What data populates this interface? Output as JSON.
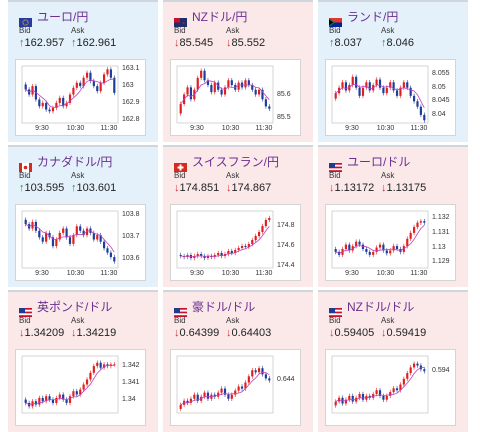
{
  "colors": {
    "up_bg": "#e4f1fb",
    "down_bg": "#fbe9ea",
    "pair_text": "#6a2f8f",
    "up_arrow": "#1a9a4a",
    "down_arrow": "#d93030",
    "candle_up": "#e02020",
    "candle_down": "#1e3c9b",
    "ma_line": "#c040c0"
  },
  "cards": [
    {
      "pair": "ユーロ/円",
      "flag": "eu-flag-icon",
      "bid_label": "Bid",
      "ask_label": "Ask",
      "direction": "up",
      "arrow_bid": "↑",
      "arrow_ask": "↑",
      "bid": "162.957",
      "ask": "162.961",
      "y_ticks": [
        "163.1",
        "163",
        "162.9",
        "162.8"
      ],
      "x_ticks": [
        "9:30",
        "10:30",
        "11:30"
      ],
      "chart_data": {
        "type": "candlestick",
        "ylim": [
          162.78,
          163.12
        ],
        "y_tick_values": [
          163.1,
          163.0,
          162.9,
          162.8
        ],
        "close": [
          162.98,
          162.95,
          163.0,
          162.92,
          162.88,
          162.9,
          162.86,
          162.85,
          162.87,
          162.9,
          162.93,
          162.88,
          162.9,
          162.95,
          162.99,
          163.02,
          163.0,
          163.05,
          163.08,
          163.03,
          163.0,
          162.97,
          163.02,
          163.07,
          163.1,
          163.05,
          162.96
        ]
      }
    },
    {
      "pair": "NZドル/円",
      "flag": "nz-flag-icon",
      "bid_label": "Bid",
      "ask_label": "Ask",
      "direction": "down",
      "arrow_bid": "↓",
      "arrow_ask": "↓",
      "bid": "85.545",
      "ask": "85.552",
      "y_ticks": [
        "85.6",
        "85.5"
      ],
      "x_ticks": [
        "9:30",
        "10:30",
        "11:30"
      ],
      "chart_data": {
        "type": "candlestick",
        "ylim": [
          85.48,
          85.72
        ],
        "y_tick_values": [
          85.6,
          85.5
        ],
        "close": [
          85.56,
          85.6,
          85.63,
          85.58,
          85.62,
          85.67,
          85.7,
          85.66,
          85.64,
          85.61,
          85.65,
          85.62,
          85.6,
          85.63,
          85.66,
          85.64,
          85.62,
          85.65,
          85.63,
          85.66,
          85.64,
          85.62,
          85.6,
          85.62,
          85.58,
          85.55,
          85.54
        ]
      }
    },
    {
      "pair": "ランド/円",
      "flag": "za-flag-icon",
      "bid_label": "Bid",
      "ask_label": "Ask",
      "direction": "up",
      "arrow_bid": "↑",
      "arrow_ask": "↑",
      "bid": "8.037",
      "ask": "8.046",
      "y_ticks": [
        "8.055",
        "8.05",
        "8.045",
        "8.04"
      ],
      "x_ticks": [
        "9:30",
        "10:30",
        "11:30"
      ],
      "chart_data": {
        "type": "candlestick",
        "ylim": [
          8.037,
          8.058
        ],
        "y_tick_values": [
          8.055,
          8.05,
          8.045,
          8.04
        ],
        "close": [
          8.048,
          8.05,
          8.052,
          8.049,
          8.051,
          8.054,
          8.05,
          8.047,
          8.05,
          8.052,
          8.049,
          8.051,
          8.053,
          8.05,
          8.048,
          8.05,
          8.052,
          8.049,
          8.047,
          8.05,
          8.052,
          8.05,
          8.047,
          8.045,
          8.043,
          8.04,
          8.038
        ]
      }
    },
    {
      "pair": "カナダドル/円",
      "flag": "ca-flag-icon",
      "bid_label": "Bid",
      "ask_label": "Ask",
      "direction": "up",
      "arrow_bid": "↑",
      "arrow_ask": "↑",
      "bid": "103.595",
      "ask": "103.601",
      "y_ticks": [
        "103.8",
        "103.7",
        "103.6"
      ],
      "x_ticks": [
        "9:30",
        "10:30",
        "11:30"
      ],
      "chart_data": {
        "type": "candlestick",
        "ylim": [
          103.56,
          103.82
        ],
        "y_tick_values": [
          103.8,
          103.7,
          103.6
        ],
        "close": [
          103.76,
          103.74,
          103.77,
          103.73,
          103.7,
          103.68,
          103.72,
          103.7,
          103.66,
          103.69,
          103.72,
          103.74,
          103.7,
          103.67,
          103.71,
          103.75,
          103.73,
          103.71,
          103.74,
          103.72,
          103.69,
          103.71,
          103.68,
          103.65,
          103.63,
          103.61,
          103.59
        ]
      }
    },
    {
      "pair": "スイスフラン/円",
      "flag": "ch-flag-icon",
      "bid_label": "Bid",
      "ask_label": "Ask",
      "direction": "down",
      "arrow_bid": "↓",
      "arrow_ask": "↓",
      "bid": "174.851",
      "ask": "174.867",
      "y_ticks": [
        "174.8",
        "174.6",
        "174.4"
      ],
      "x_ticks": [
        "9:30",
        "10:30",
        "11:30"
      ],
      "chart_data": {
        "type": "candlestick",
        "ylim": [
          174.38,
          174.95
        ],
        "y_tick_values": [
          174.8,
          174.6,
          174.4
        ],
        "close": [
          174.5,
          174.49,
          174.51,
          174.48,
          174.5,
          174.52,
          174.5,
          174.48,
          174.5,
          174.49,
          174.51,
          174.53,
          174.5,
          174.52,
          174.55,
          174.53,
          174.56,
          174.58,
          174.6,
          174.59,
          174.62,
          174.66,
          174.7,
          174.74,
          174.8,
          174.86,
          174.88
        ]
      }
    },
    {
      "pair": "ユーロ/ドル",
      "flag": "us-flag-icon",
      "bid_label": "Bid",
      "ask_label": "Ask",
      "direction": "down",
      "arrow_bid": "↓",
      "arrow_ask": "↓",
      "bid": "1.13172",
      "ask": "1.13175",
      "y_ticks": [
        "1.132",
        "1.131",
        "1.13",
        "1.129"
      ],
      "x_ticks": [
        "9:30",
        "10:30",
        "11:30"
      ],
      "chart_data": {
        "type": "candlestick",
        "ylim": [
          1.1286,
          1.1325
        ],
        "y_tick_values": [
          1.132,
          1.131,
          1.13,
          1.129
        ],
        "close": [
          1.1297,
          1.1295,
          1.1299,
          1.1302,
          1.1298,
          1.1301,
          1.1304,
          1.1302,
          1.1299,
          1.1297,
          1.1295,
          1.1297,
          1.13,
          1.1302,
          1.1298,
          1.1296,
          1.1298,
          1.1301,
          1.1299,
          1.1297,
          1.1301,
          1.1306,
          1.131,
          1.1314,
          1.1317,
          1.1318,
          1.1317
        ]
      }
    },
    {
      "pair": "英ポンド/ドル",
      "flag": "gb-us-flag-icon",
      "bid_label": "Bid",
      "ask_label": "Ask",
      "direction": "down",
      "arrow_bid": "↓",
      "arrow_ask": "↓",
      "bid": "1.34209",
      "ask": "1.34219",
      "y_ticks": [
        "1.342",
        "1.341",
        "1.34"
      ],
      "x_ticks": [],
      "chart_data": {
        "type": "candlestick",
        "ylim": [
          1.3392,
          1.3426
        ],
        "y_tick_values": [
          1.342,
          1.341,
          1.34
        ],
        "close": [
          1.3398,
          1.3396,
          1.3399,
          1.3397,
          1.3401,
          1.3399,
          1.3402,
          1.34,
          1.3398,
          1.3401,
          1.3403,
          1.34,
          1.3398,
          1.3402,
          1.3405,
          1.3403,
          1.3406,
          1.3409,
          1.3412,
          1.3416,
          1.342,
          1.3422,
          1.3419,
          1.3421,
          1.342,
          1.3421,
          1.3421
        ]
      }
    },
    {
      "pair": "豪ドル/ドル",
      "flag": "au-us-flag-icon",
      "bid_label": "Bid",
      "ask_label": "Ask",
      "direction": "down",
      "arrow_bid": "↓",
      "arrow_ask": "↓",
      "bid": "0.64399",
      "ask": "0.64403",
      "y_ticks": [
        "0.644"
      ],
      "x_ticks": [],
      "chart_data": {
        "type": "candlestick",
        "ylim": [
          0.6424,
          0.6452
        ],
        "y_tick_values": [
          0.644
        ],
        "close": [
          0.6428,
          0.643,
          0.6429,
          0.6431,
          0.6433,
          0.643,
          0.6432,
          0.6434,
          0.6431,
          0.6433,
          0.6432,
          0.6434,
          0.6436,
          0.6433,
          0.6431,
          0.6433,
          0.6435,
          0.6437,
          0.6436,
          0.6439,
          0.6442,
          0.6445,
          0.6444,
          0.6446,
          0.6443,
          0.6441,
          0.644
        ]
      }
    },
    {
      "pair": "NZドル/ドル",
      "flag": "nz-us-flag-icon",
      "bid_label": "Bid",
      "ask_label": "Ask",
      "direction": "down",
      "arrow_bid": "↓",
      "arrow_ask": "↓",
      "bid": "0.59405",
      "ask": "0.59419",
      "y_ticks": [
        "0.594"
      ],
      "x_ticks": [],
      "chart_data": {
        "type": "candlestick",
        "ylim": [
          0.5918,
          0.5948
        ],
        "y_tick_values": [
          0.594
        ],
        "close": [
          0.5924,
          0.5926,
          0.5923,
          0.5925,
          0.5927,
          0.5924,
          0.5926,
          0.5928,
          0.5925,
          0.5927,
          0.5926,
          0.5928,
          0.593,
          0.5927,
          0.5925,
          0.5927,
          0.5929,
          0.5931,
          0.593,
          0.5933,
          0.5936,
          0.5939,
          0.5942,
          0.5944,
          0.5943,
          0.5941,
          0.594
        ]
      }
    }
  ]
}
